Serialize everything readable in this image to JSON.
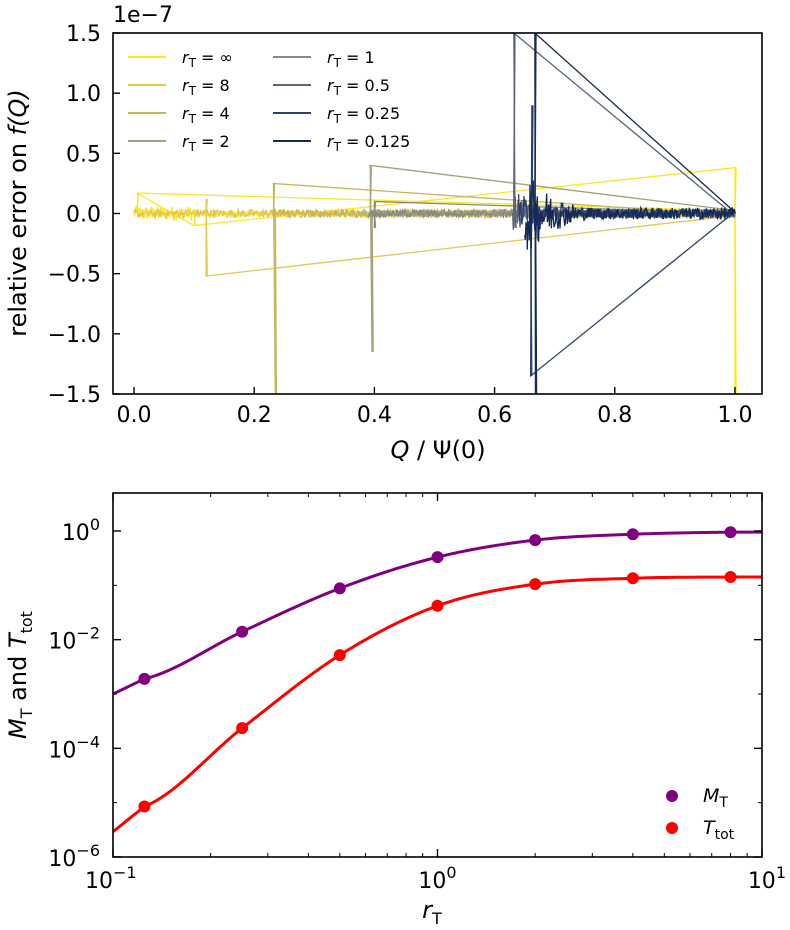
{
  "chart_data": [
    {
      "type": "line",
      "title": "",
      "offset_label": "1e−7",
      "xlabel": {
        "main": "Q",
        "sep": " / ",
        "rest": "Ψ(0)"
      },
      "ylabel": {
        "main": "relative error on ",
        "italic": "f(Q)"
      },
      "xlim": [
        -0.035,
        1.045
      ],
      "ylim": [
        -1.5,
        1.5
      ],
      "x_ticks": [
        0.0,
        0.2,
        0.4,
        0.6,
        0.8,
        1.0
      ],
      "x_tick_labels": [
        "0.0",
        "0.2",
        "0.4",
        "0.6",
        "0.8",
        "1.0"
      ],
      "y_ticks": [
        -1.5,
        -1.0,
        -0.5,
        0.0,
        0.5,
        1.0,
        1.5
      ],
      "y_tick_labels": [
        "−1.5",
        "−1.0",
        "−0.5",
        "0.0",
        "0.5",
        "1.0",
        "1.5"
      ],
      "legend_location": "top-left",
      "series": [
        {
          "name_sym": "r",
          "name_sub": "T",
          "name_val": "= ∞",
          "color": "#fde725",
          "noise_range": [
            0.0,
            1.0
          ],
          "amp": 0.06,
          "spikes": [
            [
              0.005,
              0.17
            ],
            [
              0.1,
              -0.1
            ],
            [
              1.0,
              0.38
            ],
            [
              1.0,
              -1.5
            ]
          ]
        },
        {
          "name_sym": "r",
          "name_sub": "T",
          "name_val": "= 8",
          "color": "#e2c94f",
          "noise_range": [
            0.0,
            1.0
          ],
          "amp": 0.035,
          "spikes": [
            [
              0.12,
              -0.52
            ],
            [
              0.12,
              0.12
            ]
          ]
        },
        {
          "name_sym": "r",
          "name_sub": "T",
          "name_val": "= 4",
          "color": "#c7b55e",
          "noise_range": [
            0.23,
            1.0
          ],
          "amp": 0.03,
          "spikes": [
            [
              0.232,
              0.25
            ],
            [
              0.235,
              -1.5
            ]
          ]
        },
        {
          "name_sym": "r",
          "name_sub": "T",
          "name_val": "= 2",
          "color": "#a8a077",
          "noise_range": [
            0.39,
            1.0
          ],
          "amp": 0.035,
          "spikes": [
            [
              0.393,
              0.4
            ],
            [
              0.396,
              -1.15
            ]
          ]
        },
        {
          "name_sym": "r",
          "name_sub": "T",
          "name_val": "= 1",
          "color": "#888b82",
          "noise_range": [
            0.39,
            1.0
          ],
          "amp": 0.03,
          "spikes": [
            [
              0.4,
              0.1
            ],
            [
              0.4,
              -0.12
            ]
          ]
        },
        {
          "name_sym": "r",
          "name_sub": "T",
          "name_val": "= 0.5",
          "color": "#5b6577",
          "noise_range": [
            0.63,
            1.0
          ],
          "amp": 0.03,
          "spikes": [
            [
              0.632,
              1.5
            ],
            [
              0.634,
              -0.12
            ]
          ]
        },
        {
          "name_sym": "r",
          "name_sub": "T",
          "name_val": "= 0.25",
          "color": "#2e3f6f",
          "noise_range": [
            0.64,
            1.0
          ],
          "amp": 0.04,
          "spikes": [
            [
              0.66,
              -1.35
            ],
            [
              0.662,
              0.9
            ]
          ]
        },
        {
          "name_sym": "r",
          "name_sub": "T",
          "name_val": "= 0.125",
          "color": "#152a55",
          "noise_range": [
            0.65,
            1.0
          ],
          "amp": 0.05,
          "spikes": [
            [
              0.667,
              1.5
            ],
            [
              0.668,
              -1.5
            ]
          ]
        }
      ]
    },
    {
      "type": "line",
      "title": "",
      "xlabel": {
        "sym": "r",
        "sub": "T"
      },
      "ylabel": {
        "sym1": "M",
        "sub1": "T",
        "mid": " and ",
        "sym2": "T",
        "sub2": "tot"
      },
      "x_scale": "log",
      "y_scale": "log",
      "xlim": [
        0.1,
        10
      ],
      "ylim": [
        1e-06,
        5
      ],
      "x_ticks": [
        0.1,
        1,
        10
      ],
      "x_tick_labels": [
        {
          "base": "10",
          "exp": "−1"
        },
        {
          "base": "10",
          "exp": "0"
        },
        {
          "base": "10",
          "exp": "1"
        }
      ],
      "y_ticks": [
        1e-06,
        0.0001,
        0.01,
        1
      ],
      "y_tick_labels": [
        {
          "base": "10",
          "exp": "−6"
        },
        {
          "base": "10",
          "exp": "−4"
        },
        {
          "base": "10",
          "exp": "−2"
        },
        {
          "base": "10",
          "exp": "0"
        }
      ],
      "legend_location": "bottom-right",
      "series": [
        {
          "name_sym": "M",
          "name_sub": "T",
          "color": "#800080",
          "points_x": [
            0.125,
            0.25,
            0.5,
            1,
            2,
            4,
            8
          ],
          "points_y": [
            0.0019,
            0.014,
            0.088,
            0.33,
            0.68,
            0.87,
            0.95
          ]
        },
        {
          "name_sym": "T",
          "name_sub": "tot",
          "color": "#ff0000",
          "points_x": [
            0.125,
            0.25,
            0.5,
            1,
            2,
            4,
            8
          ],
          "points_y": [
            8.5e-06,
            0.000235,
            0.0052,
            0.042,
            0.105,
            0.135,
            0.142
          ]
        }
      ]
    }
  ]
}
